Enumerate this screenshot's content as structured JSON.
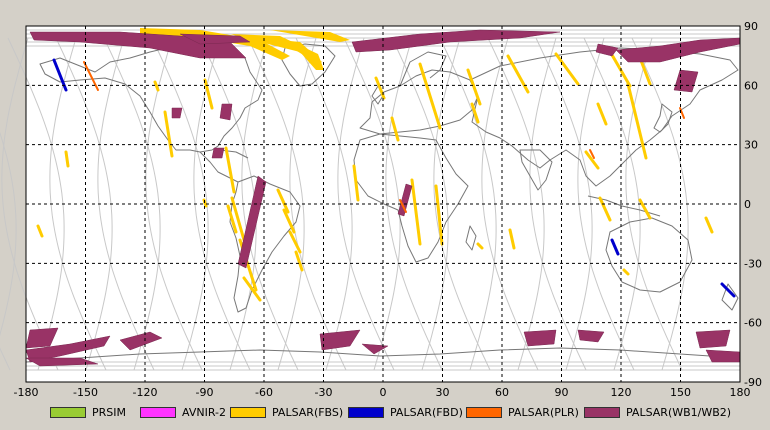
{
  "map": {
    "lon_ticks": [
      "-180",
      "-150",
      "-120",
      "-90",
      "-60",
      "-30",
      "0",
      "30",
      "60",
      "90",
      "120",
      "150",
      "180"
    ],
    "lat_ticks_right": [
      "90",
      "60",
      "30",
      "0",
      "-30",
      "-60",
      "-90"
    ],
    "colors": {
      "frame": "#000000",
      "grid": "#000000",
      "coast": "#777777",
      "orbit": "#c8c8c8",
      "background": "#ffffff",
      "outer": "#d4d0c8"
    }
  },
  "legend": [
    {
      "label": "PRSIM",
      "color": "#99cc33"
    },
    {
      "label": "AVNIR-2",
      "color": "#ff33ff"
    },
    {
      "label": "PALSAR(FBS)",
      "color": "#ffcc00"
    },
    {
      "label": "PALSAR(FBD)",
      "color": "#0000cc"
    },
    {
      "label": "PALSAR(PLR)",
      "color": "#ff6600"
    },
    {
      "label": "PALSAR(WB1/WB2)",
      "color": "#993366"
    }
  ]
}
